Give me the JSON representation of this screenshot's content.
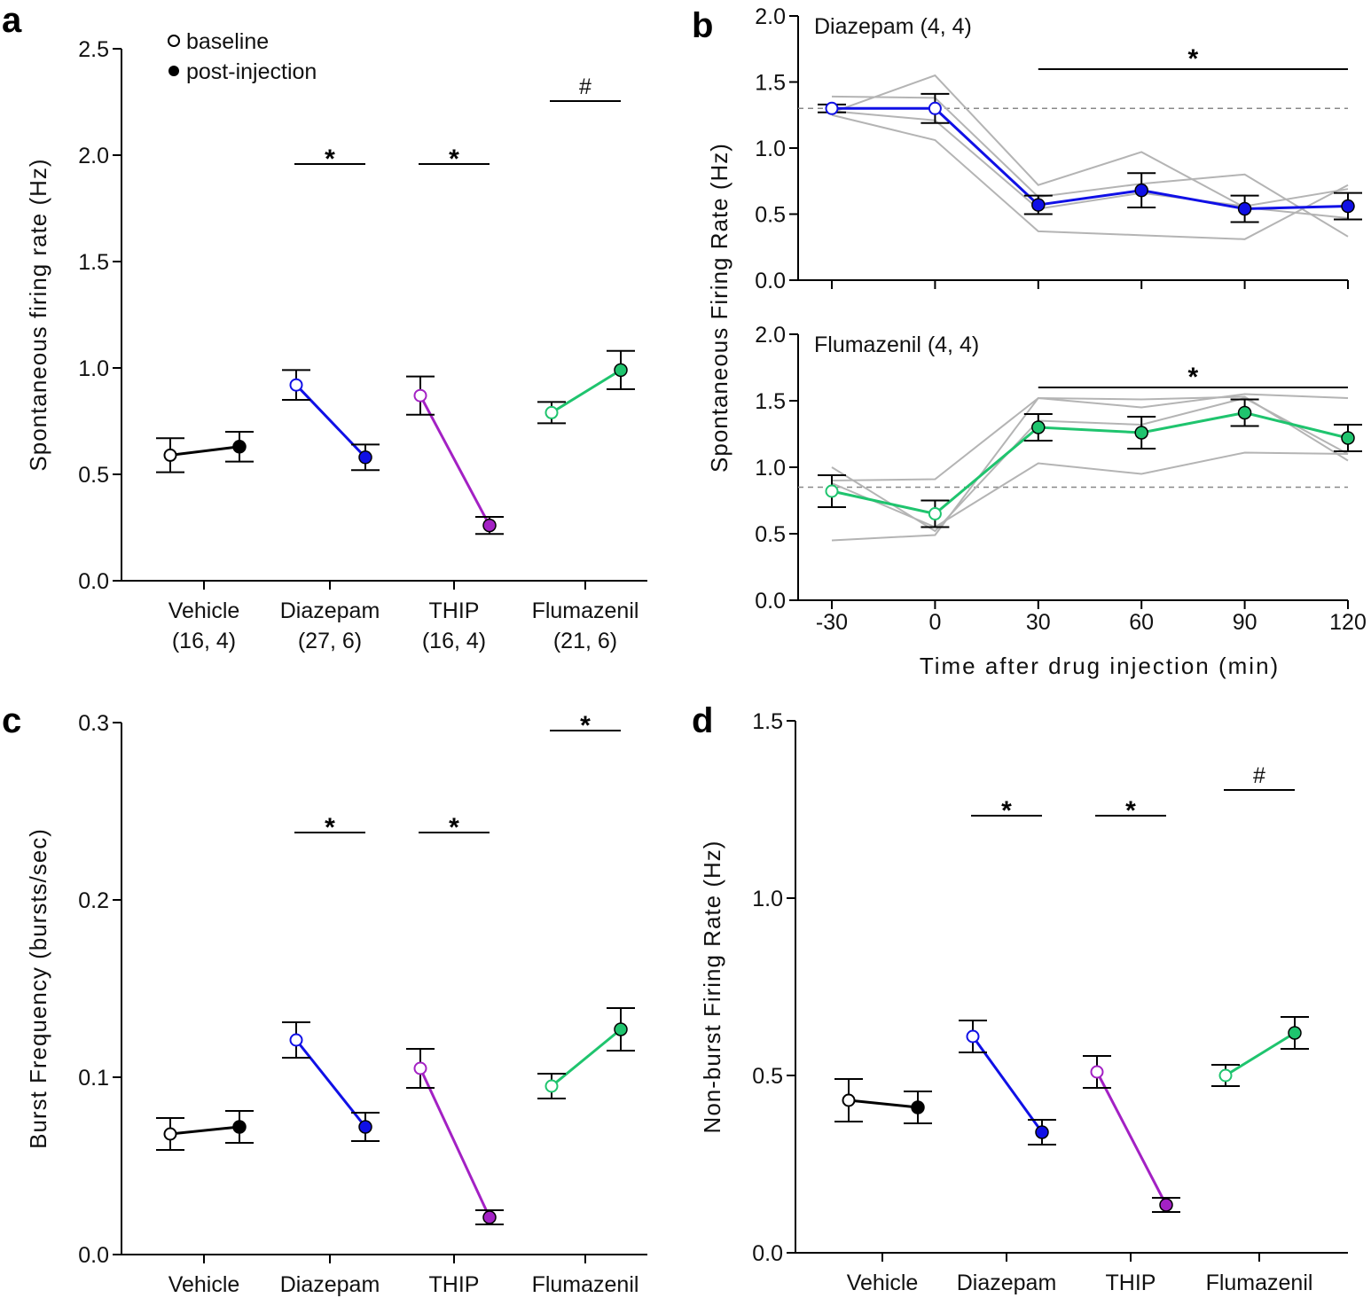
{
  "colors": {
    "Vehicle": "#000000",
    "Diazepam": "#1010e6",
    "THIP": "#a321c4",
    "Flumazenil": "#1fc46e",
    "individual": "#b4b4b4"
  },
  "legend": {
    "baseline": "baseline",
    "post": "post-injection"
  },
  "chart_data": [
    {
      "panel": "a",
      "type": "line",
      "ylabel": "Spontaneous firing rate (Hz)",
      "ylim": [
        0,
        2.5
      ],
      "yticks": [
        "0.0",
        "0.5",
        "1.0",
        "1.5",
        "2.0",
        "2.5"
      ],
      "categories": [
        {
          "name": "Vehicle",
          "n": "(16, 4)"
        },
        {
          "name": "Diazepam",
          "n": "(27, 6)"
        },
        {
          "name": "THIP",
          "n": "(16, 4)"
        },
        {
          "name": "Flumazenil",
          "n": "(21, 6)"
        }
      ],
      "baseline": {
        "mean": [
          0.59,
          0.92,
          0.87,
          0.79
        ],
        "sem": [
          0.08,
          0.07,
          0.09,
          0.05
        ]
      },
      "post": {
        "mean": [
          0.63,
          0.58,
          0.26,
          0.99
        ],
        "sem": [
          0.07,
          0.06,
          0.04,
          0.09
        ]
      },
      "significance": [
        "",
        "*",
        "*",
        "#"
      ]
    },
    {
      "panel": "b",
      "type": "line",
      "ylabel": "Spontaneous Firing Rate (Hz)",
      "xlabel": "Time after drug injection (min)",
      "x": [
        -30,
        0,
        30,
        60,
        90,
        120
      ],
      "xticks": [
        "-30",
        "0",
        "30",
        "60",
        "90",
        "120"
      ],
      "subplots": [
        {
          "title": "Diazepam (4, 4)",
          "drug": "Diazepam",
          "ylim": [
            0,
            2.0
          ],
          "yticks": [
            "0.0",
            "0.5",
            "1.0",
            "1.5",
            "2.0"
          ],
          "mean": [
            1.3,
            1.3,
            0.57,
            0.68,
            0.54,
            0.56
          ],
          "sem": [
            0.03,
            0.11,
            0.07,
            0.13,
            0.1,
            0.1
          ],
          "baseline_dashed": 1.3,
          "significance": {
            "from": 30,
            "to": 120,
            "label": "*"
          },
          "individual": [
            [
              1.27,
              1.55,
              0.72,
              0.97,
              0.55,
              0.47
            ],
            [
              1.39,
              1.38,
              0.63,
              0.73,
              0.8,
              0.33
            ],
            [
              1.25,
              1.06,
              0.37,
              0.34,
              0.31,
              0.72
            ],
            [
              1.28,
              1.21,
              0.54,
              0.66,
              0.56,
              0.69
            ]
          ]
        },
        {
          "title": "Flumazenil (4, 4)",
          "drug": "Flumazenil",
          "ylim": [
            0,
            2.0
          ],
          "yticks": [
            "0.0",
            "0.5",
            "1.0",
            "1.5",
            "2.0"
          ],
          "mean": [
            0.82,
            0.65,
            1.3,
            1.26,
            1.41,
            1.22
          ],
          "sem": [
            0.12,
            0.1,
            0.1,
            0.12,
            0.1,
            0.1
          ],
          "baseline_dashed": 0.85,
          "significance": {
            "from": 30,
            "to": 120,
            "label": "*"
          },
          "individual": [
            [
              0.9,
              0.91,
              1.52,
              1.45,
              1.55,
              1.52
            ],
            [
              1.0,
              0.52,
              1.35,
              1.32,
              1.52,
              1.1
            ],
            [
              0.88,
              0.55,
              1.03,
              0.95,
              1.11,
              1.1
            ],
            [
              0.45,
              0.49,
              1.52,
              1.51,
              1.53,
              1.05
            ]
          ]
        }
      ]
    },
    {
      "panel": "c",
      "type": "line",
      "ylabel": "Burst Frequency (bursts/sec)",
      "ylim": [
        0,
        0.3
      ],
      "yticks": [
        "0.0",
        "0.1",
        "0.2",
        "0.3"
      ],
      "categories": [
        {
          "name": "Vehicle"
        },
        {
          "name": "Diazepam"
        },
        {
          "name": "THIP"
        },
        {
          "name": "Flumazenil"
        }
      ],
      "baseline": {
        "mean": [
          0.068,
          0.121,
          0.105,
          0.095
        ],
        "sem": [
          0.009,
          0.01,
          0.011,
          0.007
        ]
      },
      "post": {
        "mean": [
          0.072,
          0.072,
          0.021,
          0.127
        ],
        "sem": [
          0.009,
          0.008,
          0.004,
          0.012
        ]
      },
      "significance": [
        "",
        "*",
        "*",
        "*"
      ]
    },
    {
      "panel": "d",
      "type": "line",
      "ylabel": "Non-burst Firing Rate (Hz)",
      "ylim": [
        0,
        1.5
      ],
      "yticks": [
        "0.0",
        "0.5",
        "1.0",
        "1.5"
      ],
      "categories": [
        {
          "name": "Vehicle"
        },
        {
          "name": "Diazepam"
        },
        {
          "name": "THIP"
        },
        {
          "name": "Flumazenil"
        }
      ],
      "baseline": {
        "mean": [
          0.43,
          0.61,
          0.51,
          0.5
        ],
        "sem": [
          0.06,
          0.045,
          0.045,
          0.03
        ]
      },
      "post": {
        "mean": [
          0.41,
          0.34,
          0.135,
          0.62
        ],
        "sem": [
          0.045,
          0.035,
          0.02,
          0.045
        ]
      },
      "significance": [
        "",
        "*",
        "*",
        "#"
      ]
    }
  ]
}
